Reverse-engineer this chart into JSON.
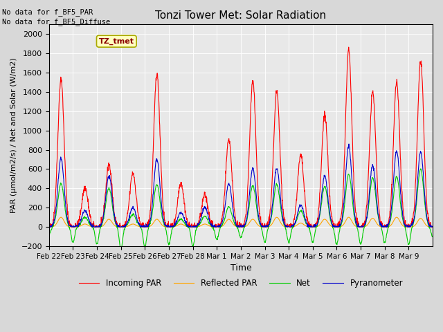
{
  "title": "Tonzi Tower Met: Solar Radiation",
  "ylabel": "PAR (μmol/m2/s) / Net and Solar (W/m2)",
  "xlabel": "Time",
  "ylim": [
    -200,
    2100
  ],
  "yticks": [
    -200,
    0,
    200,
    400,
    600,
    800,
    1000,
    1200,
    1400,
    1600,
    1800,
    2000
  ],
  "background_color": "#d8d8d8",
  "plot_bg_color": "#e8e8e8",
  "no_data_text1": "No data for f_BF5_PAR",
  "no_data_text2": "No data for f_BF5_Diffuse",
  "legend_label_text": "TZ_tmet",
  "legend_entries": [
    "Incoming PAR",
    "Reflected PAR",
    "Net",
    "Pyranometer"
  ],
  "line_colors": {
    "incoming": "#ff0000",
    "reflected": "#ffa500",
    "net": "#00cc00",
    "pyranometer": "#0000cc"
  },
  "n_days": 16,
  "day_labels": [
    "Feb 22",
    "Feb 23",
    "Feb 24",
    "Feb 25",
    "Feb 26",
    "Feb 27",
    "Feb 28",
    "Mar 1",
    "Mar 2",
    "Mar 3",
    "Mar 4",
    "Mar 5",
    "Mar 6",
    "Mar 7",
    "Mar 8",
    "Mar 9"
  ],
  "incoming_peaks": [
    1540,
    410,
    650,
    560,
    1590,
    460,
    330,
    910,
    1510,
    1400,
    740,
    1170,
    1840,
    1400,
    1500,
    1720
  ],
  "pyranometer_peaks": [
    710,
    170,
    530,
    200,
    700,
    150,
    200,
    450,
    610,
    610,
    230,
    530,
    840,
    640,
    790,
    780
  ],
  "reflected_peaks": [
    100,
    30,
    80,
    30,
    80,
    30,
    30,
    80,
    80,
    100,
    40,
    80,
    100,
    90,
    100,
    90
  ],
  "net_peaks": [
    450,
    100,
    400,
    130,
    440,
    80,
    110,
    210,
    430,
    440,
    170,
    420,
    550,
    510,
    520,
    600
  ],
  "net_neg": [
    -80,
    -80,
    -100,
    -130,
    -80,
    -100,
    -100,
    -30,
    -80,
    -80,
    -80,
    -80,
    -100,
    -80,
    -80,
    -100
  ]
}
